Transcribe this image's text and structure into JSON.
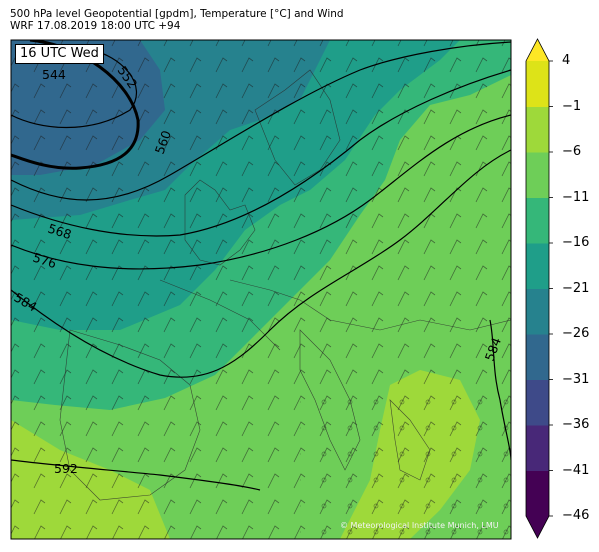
{
  "header": {
    "title_line1": "500 hPa level Geopotential [gpdm], Temperature [°C] and Wind",
    "title_line2": "WRF 17.08.2019 18:00 UTC +94"
  },
  "map": {
    "valid_label": "16 UTC Wed",
    "copyright": "© Meteorological Institute Munich, LMU",
    "contour_labels": [
      "544",
      "552",
      "560",
      "568",
      "576",
      "584",
      "584",
      "592"
    ]
  },
  "colorbar": {
    "ticks": [
      "4",
      "−1",
      "−6",
      "−11",
      "−16",
      "−21",
      "−26",
      "−31",
      "−36",
      "−41",
      "−46"
    ],
    "colors": [
      "#440154",
      "#482878",
      "#3e4a89",
      "#31688e",
      "#26828e",
      "#1f9e89",
      "#35b779",
      "#6ece58",
      "#9ed93a",
      "#dde318"
    ],
    "top_color": "#fde725",
    "bottom_color": "#440154"
  }
}
